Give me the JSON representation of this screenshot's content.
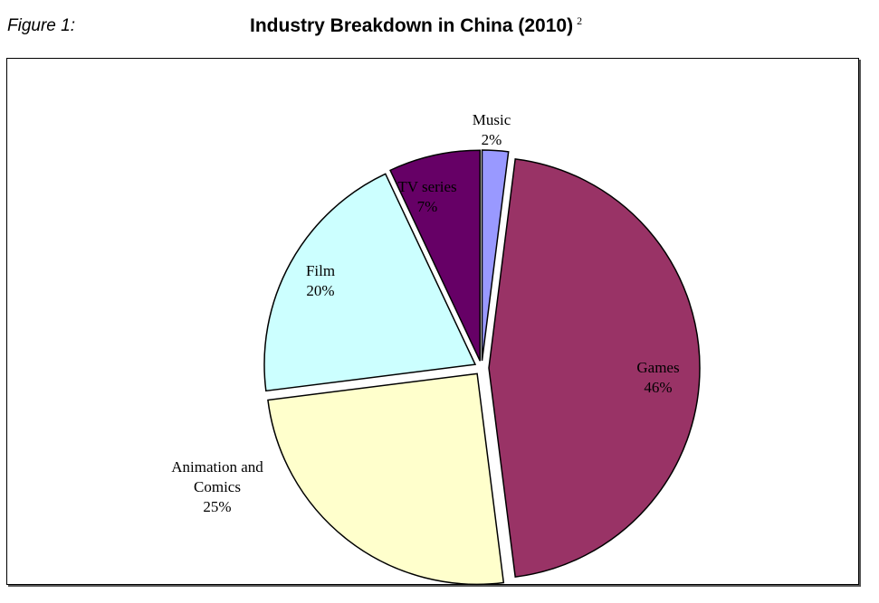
{
  "figure_label": "Figure 1:",
  "title": "Industry Breakdown in China (2010)",
  "title_footnote": "2",
  "chart_data": {
    "type": "pie",
    "title": "Industry Breakdown in China (2010)",
    "slices": [
      {
        "label": "Music",
        "value_label": "2%",
        "value": 2,
        "color": "#9999ff"
      },
      {
        "label": "Games",
        "value_label": "46%",
        "value": 46,
        "color": "#993366"
      },
      {
        "label": "Animation and Comics",
        "label_lines": [
          "Animation and",
          "Comics"
        ],
        "value_label": "25%",
        "value": 25,
        "color": "#ffffcc"
      },
      {
        "label": "Film",
        "value_label": "20%",
        "value": 20,
        "color": "#ccffff"
      },
      {
        "label": "TV series",
        "value_label": "7%",
        "value": 7,
        "color": "#660066"
      }
    ],
    "legend": "none",
    "exploded": true
  }
}
